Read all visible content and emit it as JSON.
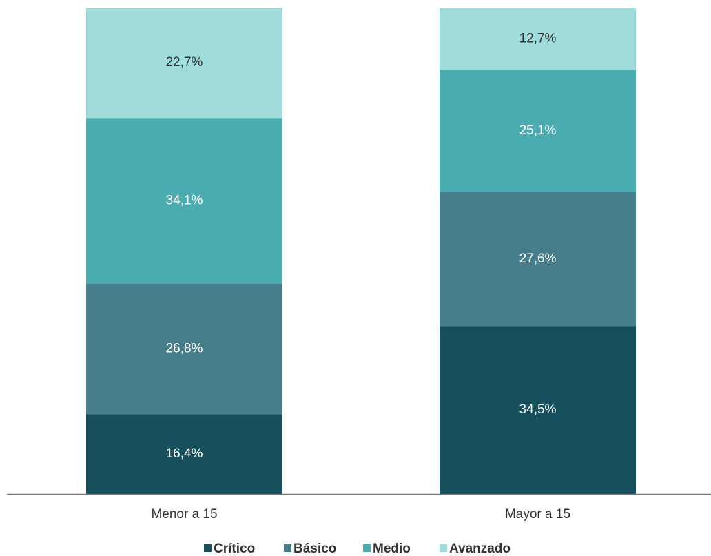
{
  "chart_data": {
    "type": "stacked_bar",
    "categories": [
      "Menor a 15",
      "Mayor a 15"
    ],
    "series": [
      {
        "name": "Crítico",
        "color": "#174f5c",
        "values": [
          16.4,
          34.5
        ],
        "value_labels": [
          "16,4%",
          "34,5%"
        ]
      },
      {
        "name": "Básico",
        "color": "#457d8a",
        "values": [
          26.8,
          27.6
        ],
        "value_labels": [
          "26,8%",
          "27,6%"
        ]
      },
      {
        "name": "Medio",
        "color": "#4aabb0",
        "values": [
          34.1,
          25.1
        ],
        "value_labels": [
          "34,1%",
          "25,1%"
        ]
      },
      {
        "name": "Avanzado",
        "color": "#a0dcdc",
        "values": [
          22.7,
          12.7
        ],
        "value_labels": [
          "22,7%",
          "12,7%"
        ]
      }
    ],
    "ylim": [
      0,
      100
    ]
  }
}
